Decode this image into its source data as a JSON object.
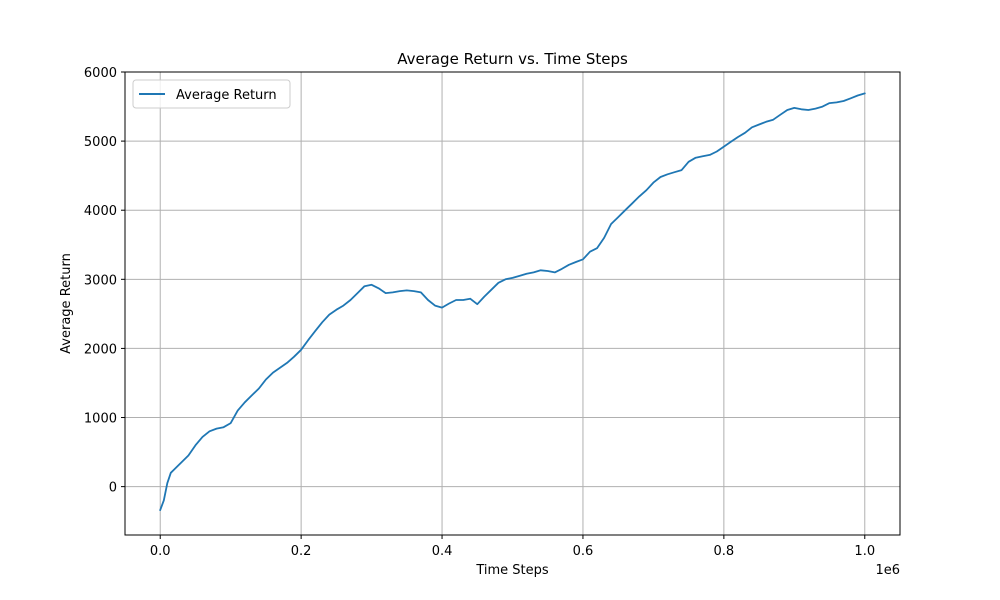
{
  "chart_data": {
    "type": "line",
    "title": "Average Return vs. Time Steps",
    "xlabel": "Time Steps",
    "ylabel": "Average Return",
    "x_offset_label": "1e6",
    "xlim": [
      -50000,
      1050000
    ],
    "ylim": [
      -700,
      6000
    ],
    "x_ticks": [
      0,
      200000,
      400000,
      600000,
      800000,
      1000000
    ],
    "x_tick_labels": [
      "0.0",
      "0.2",
      "0.4",
      "0.6",
      "0.8",
      "1.0"
    ],
    "y_ticks": [
      0,
      1000,
      2000,
      3000,
      4000,
      5000,
      6000
    ],
    "y_tick_labels": [
      "0",
      "1000",
      "2000",
      "3000",
      "4000",
      "5000",
      "6000"
    ],
    "grid": true,
    "legend_position": "top-left",
    "line_color": "#1f77b4",
    "series": [
      {
        "name": "Average Return",
        "x": [
          0,
          5000,
          10000,
          15000,
          20000,
          30000,
          40000,
          50000,
          60000,
          70000,
          80000,
          90000,
          100000,
          110000,
          120000,
          130000,
          140000,
          150000,
          160000,
          170000,
          180000,
          190000,
          200000,
          210000,
          220000,
          230000,
          240000,
          250000,
          260000,
          270000,
          280000,
          290000,
          300000,
          310000,
          320000,
          330000,
          340000,
          350000,
          360000,
          370000,
          380000,
          390000,
          400000,
          410000,
          420000,
          430000,
          440000,
          450000,
          460000,
          470000,
          480000,
          490000,
          500000,
          510000,
          520000,
          530000,
          540000,
          550000,
          560000,
          570000,
          580000,
          590000,
          600000,
          610000,
          620000,
          630000,
          640000,
          650000,
          660000,
          670000,
          680000,
          690000,
          700000,
          710000,
          720000,
          730000,
          740000,
          750000,
          760000,
          770000,
          780000,
          790000,
          800000,
          810000,
          820000,
          830000,
          840000,
          850000,
          860000,
          870000,
          880000,
          890000,
          900000,
          910000,
          920000,
          930000,
          940000,
          950000,
          960000,
          970000,
          980000,
          990000,
          1000000
        ],
        "y": [
          -340,
          -200,
          50,
          200,
          250,
          350,
          450,
          600,
          720,
          800,
          840,
          860,
          920,
          1100,
          1220,
          1320,
          1420,
          1550,
          1650,
          1720,
          1790,
          1880,
          1980,
          2120,
          2250,
          2380,
          2490,
          2560,
          2620,
          2700,
          2800,
          2900,
          2920,
          2870,
          2800,
          2810,
          2830,
          2840,
          2830,
          2810,
          2700,
          2620,
          2590,
          2650,
          2700,
          2700,
          2720,
          2640,
          2750,
          2850,
          2950,
          3000,
          3020,
          3050,
          3080,
          3100,
          3130,
          3120,
          3100,
          3150,
          3210,
          3250,
          3290,
          3400,
          3450,
          3600,
          3800,
          3900,
          4000,
          4100,
          4200,
          4290,
          4400,
          4480,
          4520,
          4550,
          4580,
          4700,
          4760,
          4780,
          4800,
          4850,
          4920,
          4990,
          5060,
          5120,
          5200,
          5240,
          5280,
          5310,
          5380,
          5450,
          5480,
          5460,
          5450,
          5470,
          5500,
          5550,
          5560,
          5580,
          5620,
          5660,
          5690
        ]
      }
    ]
  }
}
